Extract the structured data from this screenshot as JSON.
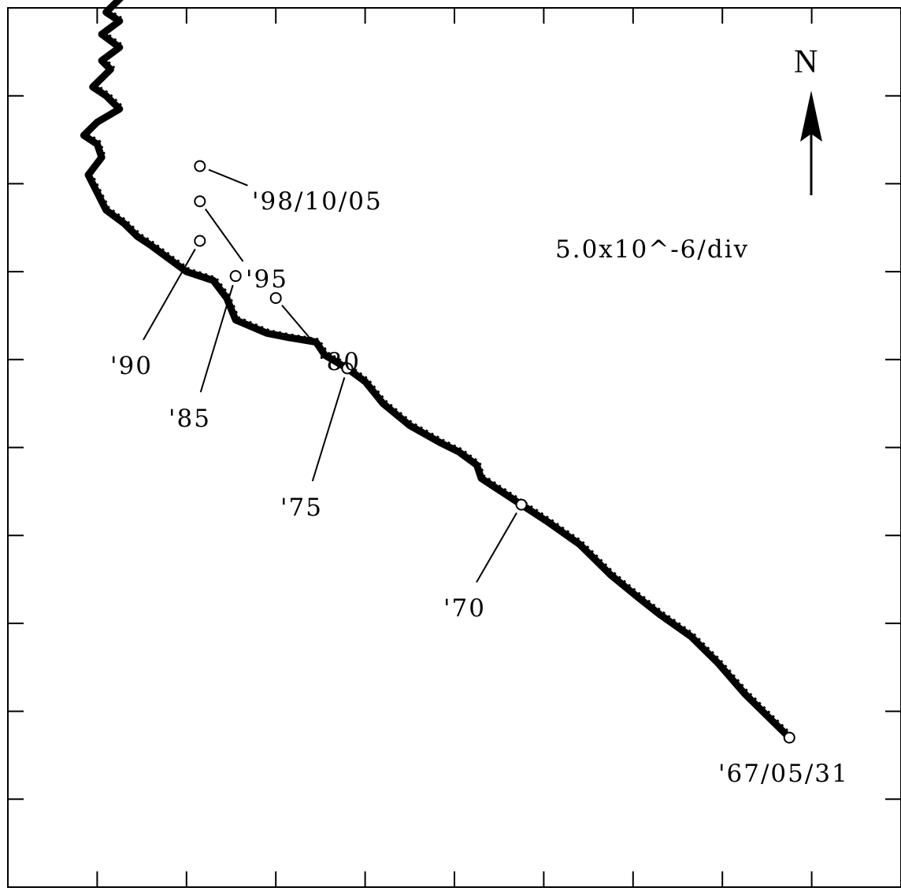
{
  "chart_data": {
    "type": "line",
    "scale_note": "5.0x10^-6/div",
    "north_label": "N",
    "grid": false,
    "legend": "none",
    "title": "",
    "xlabel": "",
    "ylabel": "",
    "xlim": [
      0,
      10
    ],
    "ylim": [
      0,
      10
    ],
    "x_ticks": [
      1,
      2,
      3,
      4,
      5,
      6,
      7,
      8,
      9
    ],
    "y_ticks": [
      1,
      2,
      3,
      4,
      5,
      6,
      7,
      8,
      9
    ],
    "series": [
      {
        "points": [
          [
            8.75,
            1.7
          ],
          [
            8.55,
            1.9
          ],
          [
            8.25,
            2.2
          ],
          [
            7.95,
            2.55
          ],
          [
            7.65,
            2.85
          ],
          [
            7.3,
            3.1
          ],
          [
            7.05,
            3.3
          ],
          [
            6.75,
            3.55
          ],
          [
            6.4,
            3.9
          ],
          [
            6.05,
            4.15
          ],
          [
            5.75,
            4.35
          ],
          [
            5.45,
            4.55
          ],
          [
            5.3,
            4.65
          ],
          [
            5.25,
            4.8
          ],
          [
            5.05,
            4.95
          ],
          [
            4.85,
            5.05
          ],
          [
            4.5,
            5.25
          ],
          [
            4.2,
            5.5
          ],
          [
            4.0,
            5.75
          ],
          [
            3.8,
            5.9
          ],
          [
            3.55,
            6.05
          ],
          [
            3.45,
            6.2
          ],
          [
            3.15,
            6.25
          ],
          [
            2.9,
            6.3
          ],
          [
            2.55,
            6.45
          ],
          [
            2.45,
            6.7
          ],
          [
            2.3,
            6.9
          ],
          [
            2.0,
            7.0
          ],
          [
            1.6,
            7.3
          ],
          [
            1.45,
            7.4
          ],
          [
            1.3,
            7.55
          ],
          [
            1.1,
            7.7
          ],
          [
            0.95,
            8.0
          ],
          [
            0.9,
            8.1
          ],
          [
            1.05,
            8.3
          ],
          [
            1.0,
            8.45
          ],
          [
            0.85,
            8.55
          ],
          [
            1.0,
            8.7
          ],
          [
            1.25,
            8.85
          ],
          [
            1.1,
            9.0
          ],
          [
            0.95,
            9.1
          ],
          [
            1.15,
            9.3
          ],
          [
            1.05,
            9.4
          ],
          [
            1.25,
            9.55
          ],
          [
            1.05,
            9.7
          ],
          [
            1.25,
            9.85
          ],
          [
            1.1,
            9.95
          ],
          [
            1.3,
            10.15
          ],
          [
            1.1,
            10.25
          ],
          [
            0.95,
            10.3
          ]
        ]
      }
    ],
    "markers": [
      {
        "label": "'67/05/31",
        "x": 8.75,
        "y": 1.7
      },
      {
        "label": "'70",
        "x": 5.75,
        "y": 4.35
      },
      {
        "label": "'75",
        "x": 3.8,
        "y": 5.9
      },
      {
        "label": "'80",
        "x": 3.0,
        "y": 6.7
      },
      {
        "label": "'85",
        "x": 2.55,
        "y": 6.95
      },
      {
        "label": "'90",
        "x": 2.15,
        "y": 7.35
      },
      {
        "label": "'95",
        "x": 2.15,
        "y": 7.8
      },
      {
        "label": "'98/10/05",
        "x": 2.15,
        "y": 8.2
      }
    ]
  }
}
